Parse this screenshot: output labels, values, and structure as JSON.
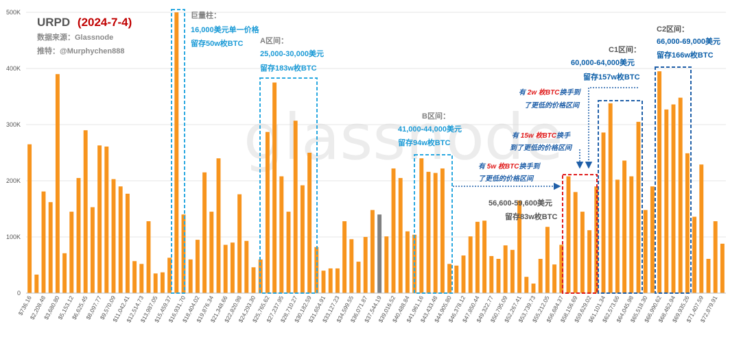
{
  "chart_data": {
    "type": "bar",
    "title_main": "URPD",
    "title_date": "(2024-7-4)",
    "source": "数据来源：Glassnode",
    "twitter": "推特：@Murphychen888",
    "watermark": "glassnode",
    "ylim": [
      0,
      500000
    ],
    "y_ticks": [
      {
        "v": 0,
        "label": "0"
      },
      {
        "v": 100000,
        "label": "100K"
      },
      {
        "v": 200000,
        "label": "200K"
      },
      {
        "v": 300000,
        "label": "300K"
      },
      {
        "v": 400000,
        "label": "400K"
      },
      {
        "v": 500000,
        "label": "500K"
      }
    ],
    "bar_color": "#F7941D",
    "highlight_color": "#808080",
    "highlight_index": 50,
    "values": [
      265000,
      33000,
      181000,
      162000,
      390000,
      71000,
      145000,
      205000,
      290000,
      153000,
      263000,
      261000,
      203000,
      190000,
      177000,
      57000,
      52000,
      128000,
      35000,
      37000,
      63000,
      500000,
      140000,
      60000,
      95000,
      215000,
      145000,
      240000,
      86000,
      90000,
      176000,
      93000,
      46000,
      60000,
      287000,
      375000,
      208000,
      145000,
      307000,
      192000,
      250000,
      82000,
      40000,
      44000,
      44000,
      128000,
      96000,
      56000,
      100000,
      148000,
      140000,
      101000,
      222000,
      205000,
      110000,
      104000,
      240000,
      216000,
      214000,
      222000,
      52000,
      49000,
      67000,
      101000,
      127000,
      129000,
      66000,
      61000,
      85000,
      77000,
      165000,
      29000,
      17000,
      61000,
      118000,
      51000,
      86000,
      208000,
      180000,
      145000,
      112000,
      190000,
      286000,
      338000,
      202000,
      236000,
      208000,
      305000,
      148000,
      190000,
      395000,
      327000,
      336000,
      348000,
      249000,
      136000,
      229000,
      61000,
      128000,
      88000
    ],
    "x_tick_labels": [
      "$736.16",
      "$2,208.48",
      "$3,680.80",
      "$5,153.12",
      "$6,625.45",
      "$8,097.77",
      "$9,570.09",
      "$11,042.41",
      "$12,514.73",
      "$13,987.05",
      "$15,459.37",
      "$16,931.70",
      "$18,404.02",
      "$19,876.34",
      "$21,348.66",
      "$22,820.98",
      "$24,293.30",
      "$25,765.62",
      "$27,237.95",
      "$28,710.27",
      "$30,182.59",
      "$31,654.91",
      "$33,127.23",
      "$34,599.55",
      "$36,071.87",
      "$37,544.19",
      "$39,016.52",
      "$40,488.84",
      "$41,961.16",
      "$43,433.48",
      "$44,905.80",
      "$46,378.12",
      "$47,850.44",
      "$49,322.77",
      "$50,795.09",
      "$52,267.41",
      "$53,739.73",
      "$55,212.05",
      "$56,684.37",
      "$58,156.69",
      "$59,629.02",
      "$61,101.34",
      "$62,573.66",
      "$64,045.98",
      "$65,518.30",
      "$66,990.62",
      "$68,462.94",
      "$69,935.26",
      "$71,407.59",
      "$72,879.91"
    ],
    "annotations": {
      "giant": {
        "title": "巨量柱：",
        "line1": "16,000美元单一价格",
        "line2": "留存50w枚BTC"
      },
      "zone_a": {
        "title": "A区间：",
        "line1": "25,000-30,000美元",
        "line2": "留存183w枚BTC"
      },
      "zone_b": {
        "title": "B区间：",
        "line1": "41,000-44,000美元",
        "line2": "留存94w枚BTC"
      },
      "zone_mid": {
        "line1": "56,600-59,600美元",
        "line2": "留存83w枚BTC"
      },
      "zone_c1": {
        "title": "C1区间：",
        "line1": "60,000-64,000美元",
        "line2": "留存157w枚BTC"
      },
      "zone_c2": {
        "title": "C2区间：",
        "line1": "66,000-69,000美元",
        "line2": "留存166w枚BTC"
      },
      "note1": {
        "pre": "有 ",
        "qty": "5w 枚BTC",
        "post": "换手到",
        "line2": "了更低的价格区间"
      },
      "note2": {
        "pre": "有 ",
        "qty": "15w 枚BTC",
        "post": "换手",
        "line2": "到了更低的价格区间"
      },
      "note3": {
        "pre": "有 ",
        "qty": "2w 枚BTC",
        "post": "换手到",
        "line2": "了更低的价格区间"
      }
    }
  },
  "colors": {
    "title_dark": "#555555",
    "title_red": "#C00000",
    "ann_grey": "#808080",
    "ann_blue": "#1A9AD6",
    "ann_dark_blue": "#0B5EA8",
    "ann_red": "#E01A1A",
    "box_light": "#2AA8E0",
    "box_dark": "#1F5FA8",
    "box_red": "#E01A1A"
  }
}
